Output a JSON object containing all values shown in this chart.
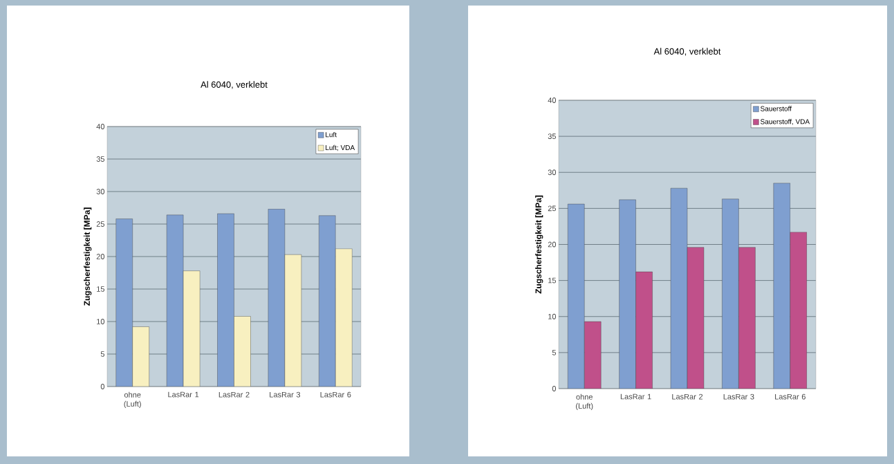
{
  "chart_data": [
    {
      "type": "bar",
      "title": "Al 6040, verklebt",
      "ylabel": "Zugscherfestigkeit [MPa]",
      "categories": [
        "ohne (Luft)",
        "LasRar 1",
        "LasRar 2",
        "LasRar 3",
        "LasRar 6"
      ],
      "series": [
        {
          "name": "Luft",
          "color": "#7f9fd0",
          "values": [
            25.8,
            26.4,
            26.6,
            27.3,
            26.3
          ]
        },
        {
          "name": "Luft; VDA",
          "color": "#f8f0c0",
          "values": [
            9.2,
            17.8,
            10.8,
            20.3,
            21.2
          ]
        }
      ],
      "ylim": [
        0,
        40
      ],
      "yticks": [
        0,
        5,
        10,
        15,
        20,
        25,
        30,
        35,
        40
      ],
      "grid": "y",
      "legend": "top right"
    },
    {
      "type": "bar",
      "title": "Al 6040, verklebt",
      "ylabel": "Zugscherfestigkeit [MPa]",
      "categories": [
        "ohne (Luft)",
        "LasRar 1",
        "LasRar 2",
        "LasRar 3",
        "LasRar 6"
      ],
      "series": [
        {
          "name": "Sauerstoff",
          "color": "#7f9fd0",
          "values": [
            25.6,
            26.2,
            27.8,
            26.3,
            28.5
          ]
        },
        {
          "name": "Sauerstoff, VDA",
          "color": "#c0508a",
          "values": [
            9.3,
            16.2,
            19.6,
            19.6,
            21.7
          ]
        }
      ],
      "ylim": [
        0,
        40
      ],
      "yticks": [
        0,
        5,
        10,
        15,
        20,
        25,
        30,
        35,
        40
      ],
      "grid": "y",
      "legend": "top right"
    }
  ]
}
